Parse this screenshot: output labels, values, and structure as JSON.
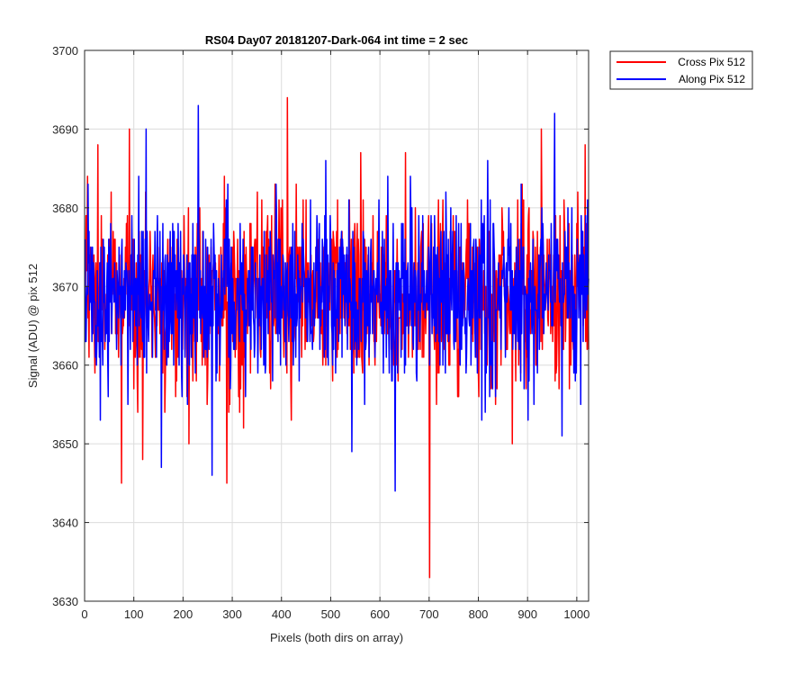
{
  "figure": {
    "background": "#ffffff",
    "axes_color": "#262626",
    "grid_color": "#dcdcdc"
  },
  "chart_data": {
    "type": "line",
    "title": "RS04 Day07 20181207-Dark-064 int time = 2 sec",
    "xlabel": "Pixels (both dirs on array)",
    "ylabel": "Signal (ADU) @ pix 512",
    "xlim": [
      0,
      1024
    ],
    "ylim": [
      3630,
      3700
    ],
    "xticks": [
      0,
      100,
      200,
      300,
      400,
      500,
      600,
      700,
      800,
      900,
      1000
    ],
    "yticks": [
      3630,
      3640,
      3650,
      3660,
      3670,
      3680,
      3690,
      3700
    ],
    "grid": true,
    "legend_position": "outside-top-right",
    "series": [
      {
        "name": "Cross Pix 512",
        "color": "#ff0000",
        "x_start": 1,
        "x_end": 1024,
        "mean": 3669,
        "std": 5.5,
        "extremes": [
          {
            "x": 6,
            "y": 3684
          },
          {
            "x": 27,
            "y": 3688
          },
          {
            "x": 75,
            "y": 3645
          },
          {
            "x": 91,
            "y": 3690
          },
          {
            "x": 118,
            "y": 3648
          },
          {
            "x": 212,
            "y": 3650
          },
          {
            "x": 289,
            "y": 3645
          },
          {
            "x": 412,
            "y": 3694
          },
          {
            "x": 561,
            "y": 3687
          },
          {
            "x": 652,
            "y": 3687
          },
          {
            "x": 701,
            "y": 3633
          },
          {
            "x": 869,
            "y": 3650
          },
          {
            "x": 928,
            "y": 3690
          },
          {
            "x": 1017,
            "y": 3688
          }
        ]
      },
      {
        "name": "Along Pix 512",
        "color": "#0000ff",
        "x_start": 1,
        "x_end": 1024,
        "mean": 3669,
        "std": 5.5,
        "extremes": [
          {
            "x": 32,
            "y": 3653
          },
          {
            "x": 125,
            "y": 3690
          },
          {
            "x": 156,
            "y": 3647
          },
          {
            "x": 231,
            "y": 3693
          },
          {
            "x": 259,
            "y": 3646
          },
          {
            "x": 543,
            "y": 3649
          },
          {
            "x": 631,
            "y": 3644
          },
          {
            "x": 955,
            "y": 3692
          },
          {
            "x": 970,
            "y": 3651
          }
        ]
      }
    ]
  }
}
